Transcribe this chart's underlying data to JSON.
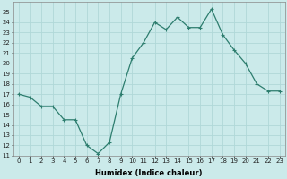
{
  "x": [
    0,
    1,
    2,
    3,
    4,
    5,
    6,
    7,
    8,
    9,
    10,
    11,
    12,
    13,
    14,
    15,
    16,
    17,
    18,
    19,
    20,
    21,
    22,
    23
  ],
  "y": [
    17.0,
    16.7,
    15.8,
    15.8,
    14.5,
    14.5,
    12.0,
    11.2,
    12.3,
    17.0,
    20.5,
    22.0,
    24.0,
    23.3,
    24.5,
    23.5,
    23.5,
    25.3,
    22.8,
    21.3,
    20.0,
    18.0,
    17.3,
    17.3
  ],
  "line_color": "#2d7d6e",
  "marker": "+",
  "marker_size": 3,
  "marker_linewidth": 0.8,
  "bg_color": "#cbeaea",
  "grid_color": "#b0d8d8",
  "xlabel": "Humidex (Indice chaleur)",
  "ylim": [
    11,
    26
  ],
  "xlim": [
    -0.5,
    23.5
  ],
  "yticks": [
    11,
    12,
    13,
    14,
    15,
    16,
    17,
    18,
    19,
    20,
    21,
    22,
    23,
    24,
    25
  ],
  "xticks": [
    0,
    1,
    2,
    3,
    4,
    5,
    6,
    7,
    8,
    9,
    10,
    11,
    12,
    13,
    14,
    15,
    16,
    17,
    18,
    19,
    20,
    21,
    22,
    23
  ],
  "xtick_labels": [
    "0",
    "1",
    "2",
    "3",
    "4",
    "5",
    "6",
    "7",
    "8",
    "9",
    "10",
    "11",
    "12",
    "13",
    "14",
    "15",
    "16",
    "17",
    "18",
    "19",
    "20",
    "21",
    "22",
    "23"
  ],
  "tick_fontsize": 5.0,
  "xlabel_fontsize": 6.0,
  "linewidth": 0.9
}
